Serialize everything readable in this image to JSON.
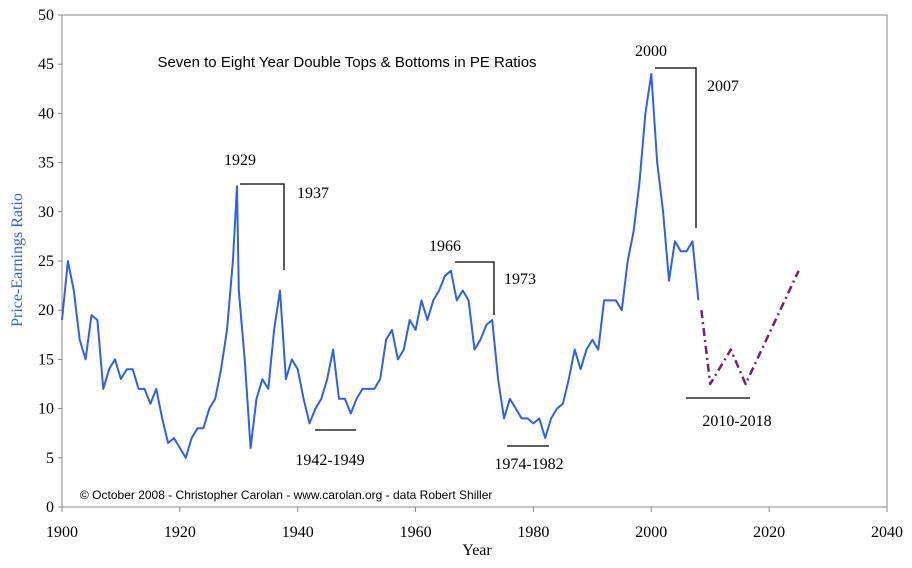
{
  "chart_data": {
    "type": "line",
    "title": "Seven to Eight Year Double Tops & Bottoms in PE Ratios",
    "xlabel": "Year",
    "ylabel": "Price-Earnings Ratio",
    "note": "© October 2008 - Christopher Carolan - www.carolan.org - data Robert Shiller",
    "annotations": [
      "1929",
      "1937",
      "1942-1949",
      "1966",
      "1973",
      "1974-1982",
      "2000",
      "2007",
      "2010-2018"
    ],
    "xlim": [
      1900,
      2040
    ],
    "xticks": [
      1900,
      1920,
      1940,
      1960,
      1980,
      2000,
      2020,
      2040
    ],
    "ylim": [
      0,
      50
    ],
    "yticks": [
      0,
      5,
      10,
      15,
      20,
      25,
      30,
      35,
      40,
      45,
      50
    ],
    "grid": false,
    "series": [
      {
        "color": "#2f62e0",
        "dash": false,
        "x": [
          1900,
          1901,
          1902,
          1903,
          1904,
          1905,
          1906,
          1907,
          1908,
          1909,
          1910,
          1911,
          1912,
          1913,
          1914,
          1915,
          1916,
          1917,
          1918,
          1919,
          1920,
          1921,
          1922,
          1923,
          1924,
          1925,
          1926,
          1927,
          1928,
          1929,
          1929.7,
          1930,
          1931,
          1932,
          1933,
          1934,
          1935,
          1936,
          1937,
          1938,
          1939,
          1940,
          1941,
          1942,
          1943,
          1944,
          1945,
          1946,
          1947,
          1948,
          1949,
          1950,
          1951,
          1952,
          1953,
          1954,
          1955,
          1956,
          1957,
          1958,
          1959,
          1960,
          1961,
          1962,
          1963,
          1964,
          1965,
          1966,
          1967,
          1968,
          1969,
          1970,
          1971,
          1972,
          1973,
          1974,
          1975,
          1976,
          1977,
          1978,
          1979,
          1980,
          1981,
          1982,
          1983,
          1984,
          1985,
          1986,
          1987,
          1988,
          1989,
          1990,
          1991,
          1992,
          1993,
          1994,
          1995,
          1996,
          1997,
          1998,
          1999,
          2000,
          2001,
          2002,
          2003,
          2004,
          2005,
          2006,
          2007,
          2008
        ],
        "values": [
          19,
          25,
          22,
          17,
          15,
          19.5,
          19,
          12,
          14,
          15,
          13,
          14,
          14,
          12,
          12,
          10.5,
          12,
          9,
          6.5,
          7,
          6,
          5,
          7,
          8,
          8,
          10,
          11,
          14,
          18,
          25,
          32.6,
          22,
          15,
          6,
          11,
          13,
          12,
          18,
          22,
          13,
          15,
          14,
          11,
          8.5,
          10,
          11,
          13,
          16,
          11,
          11,
          9.5,
          11,
          12,
          12,
          12,
          13,
          17,
          18,
          15,
          16,
          19,
          18,
          21,
          19,
          21,
          22,
          23.5,
          24,
          21,
          22,
          21,
          16,
          17,
          18.5,
          19,
          13,
          9,
          11,
          10,
          9,
          9,
          8.5,
          9,
          7,
          9,
          10,
          10.5,
          13,
          16,
          14,
          16,
          17,
          16,
          21,
          21,
          21,
          20,
          25,
          28,
          33,
          40,
          44,
          35,
          30,
          23,
          27,
          26,
          26,
          27,
          21
        ]
      },
      {
        "color": "#7a1f6e",
        "dash": true,
        "x": [
          2008.5,
          2010,
          2013.5,
          2016,
          2025
        ],
        "values": [
          20,
          12.5,
          16,
          12.5,
          24
        ]
      }
    ]
  }
}
